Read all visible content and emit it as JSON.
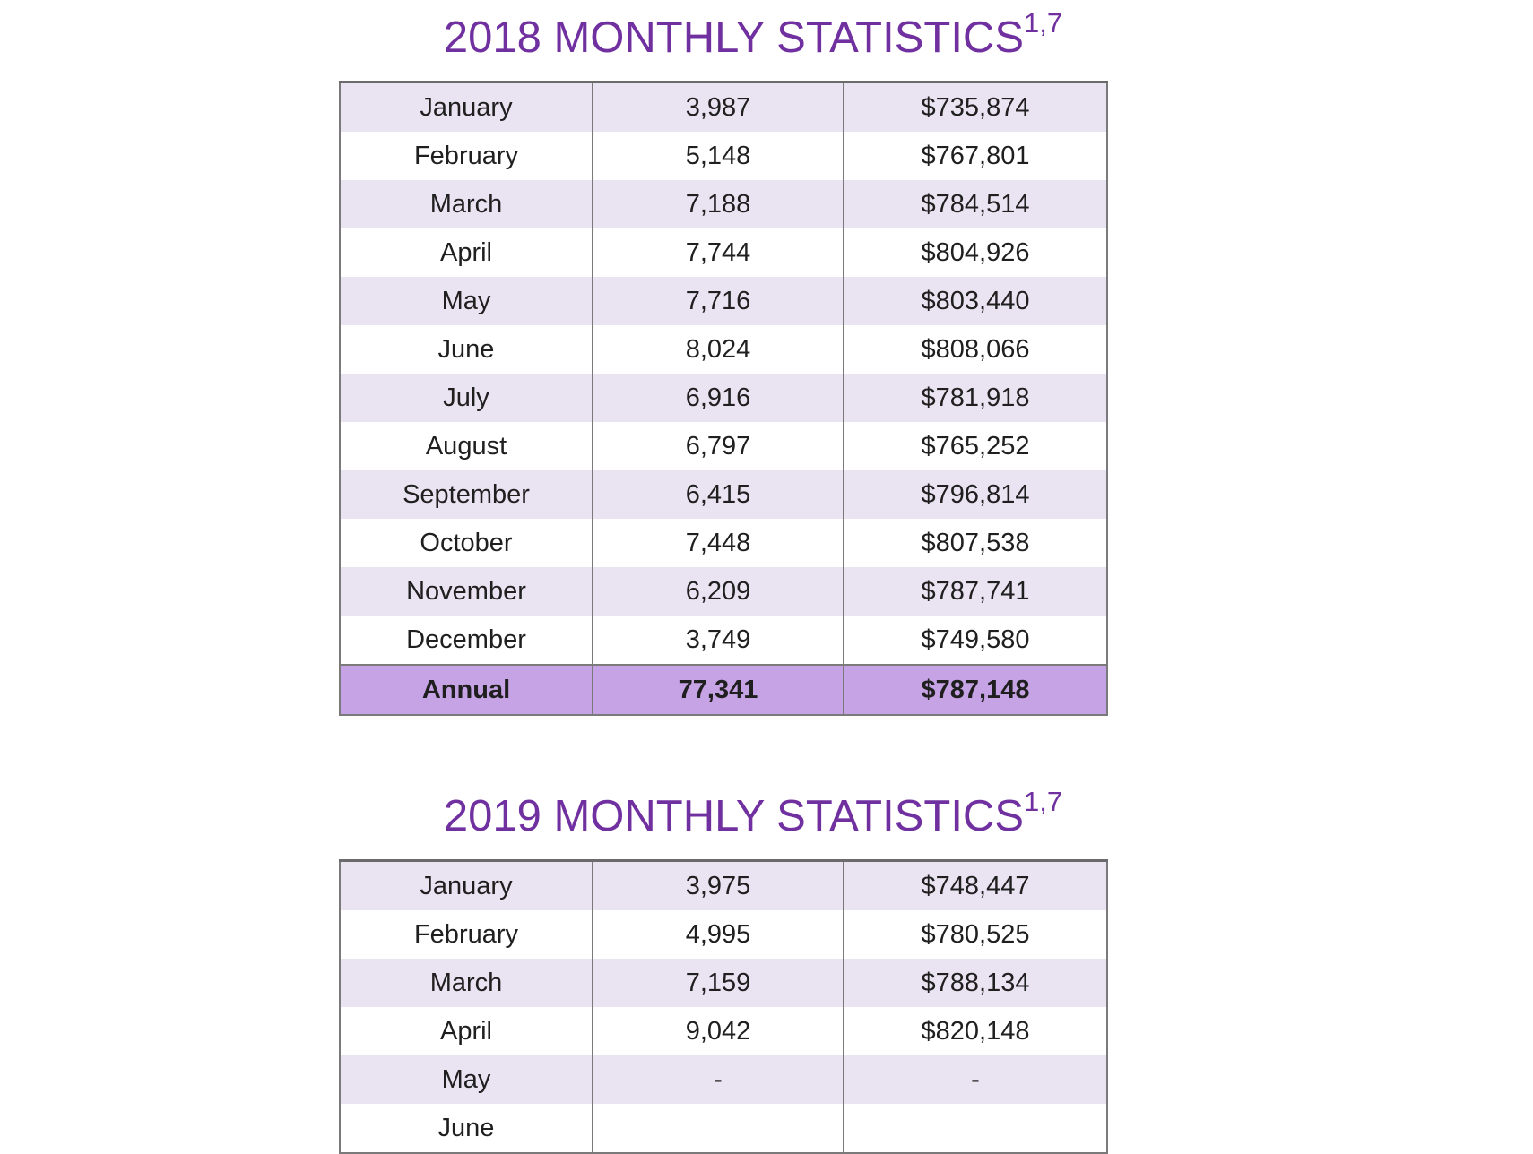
{
  "colors": {
    "title_purple": "#7030a0",
    "stripe_lavender": "#eae3f2",
    "annual_purple": "#c6a3e4",
    "border_gray": "#7a7a7a",
    "text_dark": "#1f1f1f",
    "page_background": "#ffffff"
  },
  "sections": [
    {
      "title": "2018 MONTHLY STATISTICS",
      "superscript": "1,7",
      "rows": [
        {
          "month": "January",
          "value": "3,987",
          "amount": "$735,874"
        },
        {
          "month": "February",
          "value": "5,148",
          "amount": "$767,801"
        },
        {
          "month": "March",
          "value": "7,188",
          "amount": "$784,514"
        },
        {
          "month": "April",
          "value": "7,744",
          "amount": "$804,926"
        },
        {
          "month": "May",
          "value": "7,716",
          "amount": "$803,440"
        },
        {
          "month": "June",
          "value": "8,024",
          "amount": "$808,066"
        },
        {
          "month": "July",
          "value": "6,916",
          "amount": "$781,918"
        },
        {
          "month": "August",
          "value": "6,797",
          "amount": "$765,252"
        },
        {
          "month": "September",
          "value": "6,415",
          "amount": "$796,814"
        },
        {
          "month": "October",
          "value": "7,448",
          "amount": "$807,538"
        },
        {
          "month": "November",
          "value": "6,209",
          "amount": "$787,741"
        },
        {
          "month": "December",
          "value": "3,749",
          "amount": "$749,580"
        },
        {
          "month": "Annual",
          "value": "77,341",
          "amount": "$787,148",
          "emphasis": true
        }
      ]
    },
    {
      "title": "2019 MONTHLY STATISTICS",
      "superscript": "1,7",
      "rows": [
        {
          "month": "January",
          "value": "3,975",
          "amount": "$748,447"
        },
        {
          "month": "February",
          "value": "4,995",
          "amount": "$780,525"
        },
        {
          "month": "March",
          "value": "7,159",
          "amount": "$788,134"
        },
        {
          "month": "April",
          "value": "9,042",
          "amount": "$820,148"
        },
        {
          "month": "May",
          "value": "-",
          "amount": "-"
        },
        {
          "month": "June",
          "value": "",
          "amount": ""
        }
      ]
    }
  ]
}
